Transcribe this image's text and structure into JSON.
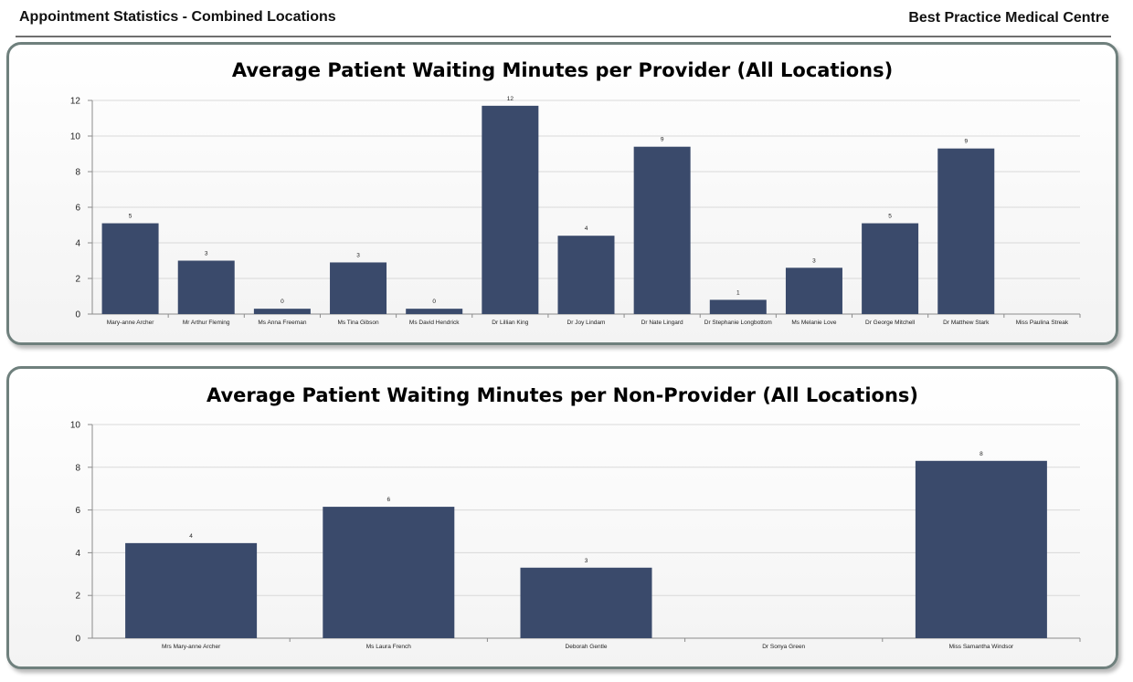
{
  "header": {
    "report_title": "Appointment Statistics - Combined Locations",
    "org_name": "Best Practice Medical Centre"
  },
  "colors": {
    "bar": "#3a4a6b",
    "grid": "#d9d9d9",
    "axis": "#8c8c8c",
    "panel_border": "#6f807d"
  },
  "chart_data": [
    {
      "type": "bar",
      "title": "Average Patient Waiting Minutes per Provider (All Locations)",
      "xlabel": "",
      "ylabel": "",
      "ylim": [
        0,
        12
      ],
      "yticks": [
        0,
        2,
        4,
        6,
        8,
        10,
        12
      ],
      "grid": true,
      "categories": [
        "Mary-anne Archer",
        "Mr Arthur Fleming",
        "Ms Anna Freeman",
        "Ms Tina Gibson",
        "Ms David Hendrick",
        "Dr Lillian King",
        "Dr Joy Lindam",
        "Dr Nate Lingard",
        "Dr Stephanie Longbottom",
        "Ms Melanie Love",
        "Dr George Mitchell",
        "Dr Matthew Stark",
        "Miss Paulina Streak"
      ],
      "values": [
        5.1,
        3.0,
        0.3,
        2.9,
        0.3,
        11.7,
        4.4,
        9.4,
        0.8,
        2.6,
        5.1,
        9.3,
        0
      ],
      "data_labels": [
        "5",
        "3",
        "0",
        "3",
        "0",
        "12",
        "4",
        "9",
        "1",
        "3",
        "5",
        "9",
        ""
      ]
    },
    {
      "type": "bar",
      "title": "Average Patient Waiting Minutes per Non-Provider (All Locations)",
      "xlabel": "",
      "ylabel": "",
      "ylim": [
        0,
        10
      ],
      "yticks": [
        0,
        2,
        4,
        6,
        8,
        10
      ],
      "grid": true,
      "categories": [
        "Mrs Mary-anne Archer",
        "Ms Laura French",
        "Deborah Gentle",
        "Dr Sonya Green",
        "Miss Samantha Windsor"
      ],
      "values": [
        4.45,
        6.15,
        3.3,
        0,
        8.3
      ],
      "data_labels": [
        "4",
        "6",
        "3",
        "",
        "8"
      ]
    }
  ]
}
